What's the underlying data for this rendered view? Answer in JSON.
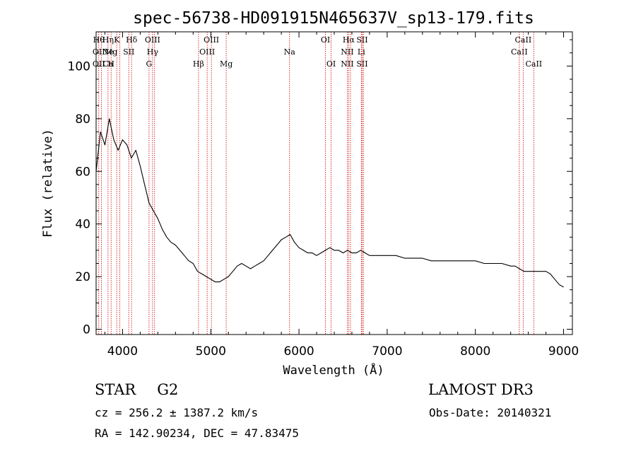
{
  "chart_data": {
    "type": "line",
    "title": "spec-56738-HD091915N465637V_sp13-179.fits",
    "xlabel": "Wavelength (Å)",
    "ylabel": "Flux (relative)",
    "xlim": [
      3700,
      9100
    ],
    "ylim": [
      -2,
      113
    ],
    "xticks": [
      4000,
      5000,
      6000,
      7000,
      8000,
      9000
    ],
    "yticks": [
      0,
      20,
      40,
      60,
      80,
      100
    ],
    "grid": false,
    "line_color": "#000000",
    "marker_color": "#cc0000",
    "series": [
      {
        "x": [
          3700,
          3750,
          3800,
          3850,
          3900,
          3950,
          4000,
          4050,
          4100,
          4150,
          4200,
          4250,
          4300,
          4350,
          4400,
          4450,
          4500,
          4550,
          4600,
          4650,
          4700,
          4750,
          4800,
          4850,
          4900,
          4950,
          5000,
          5050,
          5100,
          5150,
          5200,
          5250,
          5300,
          5350,
          5400,
          5450,
          5500,
          5550,
          5600,
          5650,
          5700,
          5750,
          5800,
          5850,
          5900,
          5950,
          6000,
          6050,
          6100,
          6150,
          6200,
          6250,
          6300,
          6350,
          6400,
          6450,
          6500,
          6550,
          6600,
          6650,
          6700,
          6750,
          6800,
          6900,
          7000,
          7100,
          7200,
          7300,
          7400,
          7500,
          7600,
          7700,
          7800,
          7900,
          8000,
          8100,
          8200,
          8300,
          8400,
          8450,
          8500,
          8550,
          8600,
          8650,
          8700,
          8750,
          8800,
          8850,
          8900,
          8950,
          9000
        ],
        "y": [
          60,
          75,
          70,
          80,
          72,
          68,
          72,
          70,
          65,
          68,
          62,
          55,
          48,
          45,
          42,
          38,
          35,
          33,
          32,
          30,
          28,
          26,
          25,
          22,
          21,
          20,
          19,
          18,
          18,
          19,
          20,
          22,
          24,
          25,
          24,
          23,
          24,
          25,
          26,
          28,
          30,
          32,
          34,
          35,
          36,
          33,
          31,
          30,
          29,
          29,
          28,
          29,
          30,
          31,
          30,
          30,
          29,
          30,
          29,
          29,
          30,
          29,
          28,
          28,
          28,
          28,
          27,
          27,
          27,
          26,
          26,
          26,
          26,
          26,
          26,
          25,
          25,
          25,
          24,
          24,
          23,
          22,
          22,
          22,
          22,
          22,
          22,
          21,
          19,
          17,
          16
        ]
      }
    ],
    "line_markers": [
      {
        "x": 3730,
        "rows": [
          "Hθ",
          "OII",
          "OII"
        ]
      },
      {
        "x": 3760,
        "rows": [
          null,
          null,
          null
        ]
      },
      {
        "x": 3835,
        "rows": [
          "Hη",
          "Ne",
          "Ca"
        ]
      },
      {
        "x": 3870,
        "rows": [
          null,
          "Mg",
          "H"
        ]
      },
      {
        "x": 3934,
        "rows": [
          "K",
          null,
          null
        ]
      },
      {
        "x": 3968,
        "rows": [
          null,
          null,
          null
        ]
      },
      {
        "x": 4070,
        "rows": [
          null,
          "SII",
          null
        ]
      },
      {
        "x": 4102,
        "rows": [
          "Hδ",
          null,
          null
        ]
      },
      {
        "x": 4300,
        "rows": [
          null,
          null,
          "G"
        ]
      },
      {
        "x": 4340,
        "rows": [
          "OIII",
          "Hγ",
          null
        ]
      },
      {
        "x": 4363,
        "rows": [
          null,
          null,
          null
        ]
      },
      {
        "x": 4861,
        "rows": [
          null,
          null,
          "Hβ"
        ]
      },
      {
        "x": 4959,
        "rows": [
          null,
          "OIII",
          null
        ]
      },
      {
        "x": 5007,
        "rows": [
          "OIII",
          null,
          null
        ]
      },
      {
        "x": 5175,
        "rows": [
          null,
          null,
          "Mg"
        ]
      },
      {
        "x": 5893,
        "rows": [
          null,
          "Na",
          null
        ]
      },
      {
        "x": 6300,
        "rows": [
          "OI",
          null,
          null
        ]
      },
      {
        "x": 6364,
        "rows": [
          null,
          null,
          "OI"
        ]
      },
      {
        "x": 6548,
        "rows": [
          null,
          "NII",
          "NII"
        ]
      },
      {
        "x": 6563,
        "rows": [
          "Hα",
          null,
          null
        ]
      },
      {
        "x": 6584,
        "rows": [
          null,
          null,
          null
        ]
      },
      {
        "x": 6707,
        "rows": [
          null,
          "Li",
          null
        ]
      },
      {
        "x": 6716,
        "rows": [
          "SII",
          null,
          "SII"
        ]
      },
      {
        "x": 6731,
        "rows": [
          null,
          null,
          null
        ]
      },
      {
        "x": 8498,
        "rows": [
          null,
          "CaII",
          null
        ]
      },
      {
        "x": 8542,
        "rows": [
          "CaII",
          null,
          null
        ]
      },
      {
        "x": 8662,
        "rows": [
          null,
          null,
          "CaII"
        ]
      }
    ]
  },
  "info": {
    "obj_class": "STAR",
    "subclass": "G2",
    "survey": "LAMOST DR3",
    "cz": "cz = 256.2 ± 1387.2 km/s",
    "obs_date": "Obs-Date: 20140321",
    "radec": "RA = 142.90234, DEC =  47.83475"
  }
}
